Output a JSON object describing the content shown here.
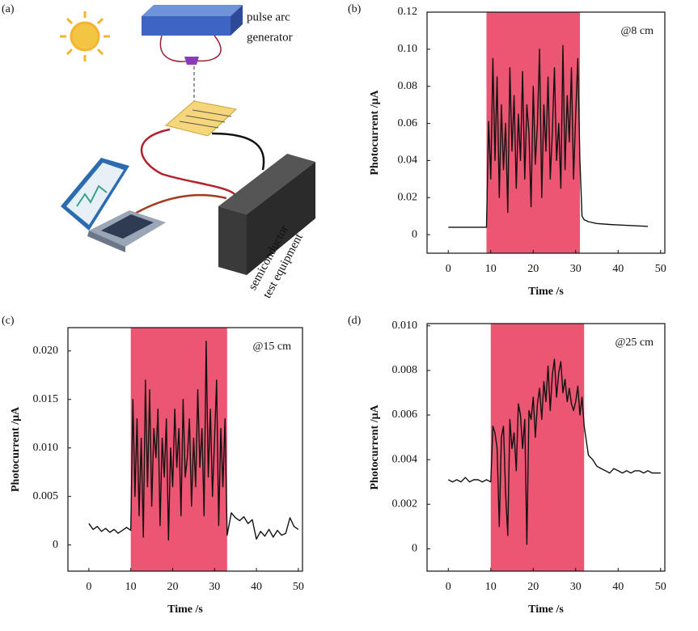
{
  "diagram": {
    "label": "(a)",
    "generator": [
      "pulse arc",
      "generator"
    ],
    "equipment": [
      "semiconductor",
      "test equipment"
    ]
  },
  "chart_data": [
    {
      "type": "line",
      "label": "(b)",
      "annotation": "@8 cm",
      "xlabel": "Time /s",
      "ylabel": "Photocurrent /μA",
      "xlim": [
        -5,
        51
      ],
      "ylim": [
        -0.01,
        0.12
      ],
      "xticks": [
        0,
        10,
        20,
        30,
        40,
        50
      ],
      "yticks": [
        0,
        0.02,
        0.04,
        0.06,
        0.08,
        {
          "value": 0.1,
          "label": "0.10"
        },
        0.12
      ],
      "shaded_region": [
        9,
        31
      ],
      "shade_color": "#ec5673",
      "color": "#111111",
      "x": [
        0,
        9,
        9.5,
        10,
        10.5,
        11,
        11.5,
        12,
        12.5,
        13,
        13.5,
        14,
        14.5,
        15,
        15.5,
        16,
        16.5,
        17,
        17.5,
        18,
        18.5,
        19,
        19.5,
        20,
        20.5,
        21,
        21.5,
        22,
        22.5,
        23,
        23.5,
        24,
        24.5,
        25,
        25.5,
        26,
        26.5,
        27,
        27.5,
        28,
        28.5,
        29,
        29.5,
        30,
        30.5,
        31,
        31.5,
        32,
        33,
        35,
        38,
        42,
        47
      ],
      "values": [
        0.004,
        0.004,
        0.061,
        0.03,
        0.095,
        0.04,
        0.085,
        0.02,
        0.07,
        0.035,
        0.06,
        0.012,
        0.09,
        0.045,
        0.075,
        0.025,
        0.065,
        0.04,
        0.088,
        0.03,
        0.07,
        0.055,
        0.015,
        0.08,
        0.038,
        0.06,
        0.1,
        0.02,
        0.07,
        0.045,
        0.085,
        0.03,
        0.055,
        0.09,
        0.04,
        0.06,
        0.025,
        0.102,
        0.035,
        0.075,
        0.05,
        0.09,
        0.03,
        0.065,
        0.095,
        0.04,
        0.01,
        0.008,
        0.007,
        0.006,
        0.0055,
        0.005,
        0.0045
      ]
    },
    {
      "type": "line",
      "label": "(c)",
      "annotation": "@15 cm",
      "xlabel": "Time /s",
      "ylabel": "Photocurrent /μA",
      "xlim": [
        -5,
        51
      ],
      "ylim": [
        -0.0027,
        0.0224
      ],
      "xticks": [
        0,
        10,
        20,
        30,
        40,
        50
      ],
      "yticks": [
        0,
        0.005,
        {
          "value": 0.01,
          "label": "0.010"
        },
        0.015,
        {
          "value": 0.02,
          "label": "0.020"
        }
      ],
      "shaded_region": [
        10,
        33
      ],
      "shade_color": "#ec5673",
      "color": "#111111",
      "x": [
        0,
        1,
        2,
        3,
        4,
        5,
        6,
        7,
        8,
        9,
        10,
        10.5,
        11,
        11.5,
        12,
        12.5,
        13,
        13.5,
        14,
        14.5,
        15,
        15.5,
        16,
        16.5,
        17,
        17.5,
        18,
        18.5,
        19,
        19.5,
        20,
        20.5,
        21,
        21.5,
        22,
        22.5,
        23,
        23.5,
        24,
        24.5,
        25,
        25.5,
        26,
        26.5,
        27,
        27.5,
        28,
        28.5,
        29,
        29.5,
        30,
        30.5,
        31,
        31.5,
        32,
        32.5,
        33,
        34,
        35,
        36,
        37,
        38,
        39,
        40,
        41,
        42,
        43,
        44,
        45,
        46,
        47,
        48,
        49,
        50
      ],
      "values": [
        0.0022,
        0.0016,
        0.0019,
        0.0014,
        0.0017,
        0.0013,
        0.0016,
        0.0012,
        0.0015,
        0.0018,
        0.0015,
        0.015,
        0.005,
        0.013,
        0.003,
        0.011,
        0.0008,
        0.017,
        0.006,
        0.016,
        0.004,
        0.012,
        0.009,
        0.014,
        0.002,
        0.011,
        0.007,
        0.013,
        0.0005,
        0.01,
        0.006,
        0.014,
        0.008,
        0.012,
        0.003,
        0.015,
        0.007,
        0.009,
        0.013,
        0.004,
        0.011,
        0.006,
        0.016,
        0.008,
        0.012,
        0.003,
        0.021,
        0.007,
        0.014,
        0.005,
        0.011,
        0.017,
        0.002,
        0.012,
        0.006,
        0.013,
        0.001,
        0.0033,
        0.0028,
        0.0025,
        0.0029,
        0.0022,
        0.0026,
        0.0006,
        0.0014,
        0.0009,
        0.0016,
        0.0008,
        0.0015,
        0.001,
        0.0012,
        0.0028,
        0.0019,
        0.0016
      ]
    },
    {
      "type": "line",
      "label": "(d)",
      "annotation": "@25 cm",
      "xlabel": "Time /s",
      "ylabel": "Photocurrent /μA",
      "xlim": [
        -5,
        51
      ],
      "ylim": [
        -0.001,
        0.0101
      ],
      "xticks": [
        0,
        10,
        20,
        30,
        40,
        50
      ],
      "yticks": [
        0,
        0.002,
        0.004,
        0.006,
        0.008,
        {
          "value": 0.01,
          "label": "0.010"
        }
      ],
      "shaded_region": [
        10,
        32
      ],
      "shade_color": "#ec5673",
      "color": "#111111",
      "x": [
        0,
        1,
        2,
        3,
        4,
        5,
        6,
        7,
        8,
        9,
        10,
        10.5,
        11,
        11.5,
        12,
        12.5,
        13,
        13.5,
        14,
        14.5,
        15,
        15.5,
        16,
        16.5,
        17,
        17.5,
        18,
        18.5,
        19,
        19.5,
        20,
        20.5,
        21,
        21.5,
        22,
        22.5,
        23,
        23.5,
        24,
        24.5,
        25,
        25.5,
        26,
        26.5,
        27,
        27.5,
        28,
        28.5,
        29,
        29.5,
        30,
        30.5,
        31,
        31.5,
        32,
        33,
        34,
        35,
        36,
        37,
        38,
        39,
        40,
        41,
        42,
        43,
        44,
        45,
        46,
        47,
        48,
        49,
        50
      ],
      "values": [
        0.0031,
        0.003,
        0.0031,
        0.003,
        0.0032,
        0.003,
        0.0031,
        0.0031,
        0.003,
        0.0031,
        0.003,
        0.0055,
        0.0052,
        0.0045,
        0.001,
        0.005,
        0.0055,
        0.0025,
        0.0006,
        0.0058,
        0.0045,
        0.0052,
        0.0035,
        0.0065,
        0.006,
        0.0045,
        0.0058,
        0.0002,
        0.0062,
        0.0058,
        0.0068,
        0.005,
        0.0065,
        0.0072,
        0.0058,
        0.0075,
        0.0066,
        0.0082,
        0.0062,
        0.0078,
        0.0085,
        0.0068,
        0.0079,
        0.0084,
        0.007,
        0.0076,
        0.0066,
        0.0072,
        0.0065,
        0.0062,
        0.0066,
        0.0073,
        0.006,
        0.0068,
        0.0055,
        0.0042,
        0.004,
        0.0037,
        0.0036,
        0.0035,
        0.0034,
        0.0036,
        0.0035,
        0.0034,
        0.0035,
        0.0034,
        0.0035,
        0.0035,
        0.0034,
        0.0035,
        0.0034,
        0.0034,
        0.0034
      ]
    }
  ]
}
